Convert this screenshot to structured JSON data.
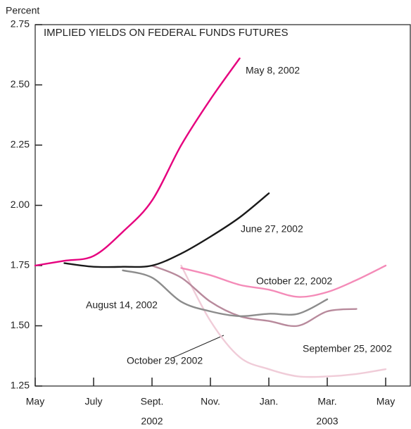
{
  "chart_data": {
    "type": "line",
    "title": "IMPLIED YIELDS ON FEDERAL FUNDS FUTURES",
    "y_label": "Percent",
    "categories": [
      "May",
      null,
      "July",
      null,
      "Sept.",
      null,
      "Nov.",
      null,
      "Jan.",
      null,
      "Mar.",
      null,
      "May"
    ],
    "year_labels": [
      "2002",
      "2003"
    ],
    "ylim": [
      1.25,
      2.75
    ],
    "yticks": [
      1.25,
      {
        "value": 1.5,
        "label": "1.50"
      },
      1.75,
      {
        "value": 2.0,
        "label": "2.00"
      },
      2.25,
      {
        "value": 2.5,
        "label": "2.50"
      },
      2.75
    ],
    "series": [
      {
        "name": "May 8, 2002",
        "color": "#e6007e",
        "values": [
          1.75,
          1.77,
          1.79,
          1.89,
          2.02,
          2.25,
          2.44,
          2.61,
          null,
          null,
          null,
          null,
          null
        ]
      },
      {
        "name": "June 27, 2002",
        "color": "#1a1a1a",
        "values": [
          null,
          1.76,
          1.745,
          1.745,
          1.75,
          1.8,
          1.87,
          1.95,
          2.05,
          null,
          null,
          null,
          null
        ]
      },
      {
        "name": "August 14, 2002",
        "color": "#8c8c8c",
        "values": [
          null,
          null,
          null,
          1.73,
          1.7,
          1.6,
          1.56,
          1.54,
          1.55,
          1.55,
          1.61,
          null,
          null
        ]
      },
      {
        "name": "September 25, 2002",
        "color": "#f0ccd8",
        "values": [
          null,
          null,
          null,
          null,
          null,
          1.75,
          1.52,
          1.37,
          1.32,
          1.29,
          1.29,
          1.3,
          1.32
        ]
      },
      {
        "name": "October 22, 2002",
        "color": "#f48bb8",
        "values": [
          null,
          null,
          null,
          null,
          null,
          1.74,
          1.71,
          1.67,
          1.65,
          1.62,
          1.64,
          1.69,
          1.75
        ]
      },
      {
        "name": "October 29, 2002",
        "color": "#b88a9c",
        "values": [
          null,
          null,
          null,
          null,
          1.75,
          1.7,
          1.6,
          1.54,
          1.52,
          1.5,
          1.56,
          1.57,
          null
        ]
      }
    ]
  }
}
